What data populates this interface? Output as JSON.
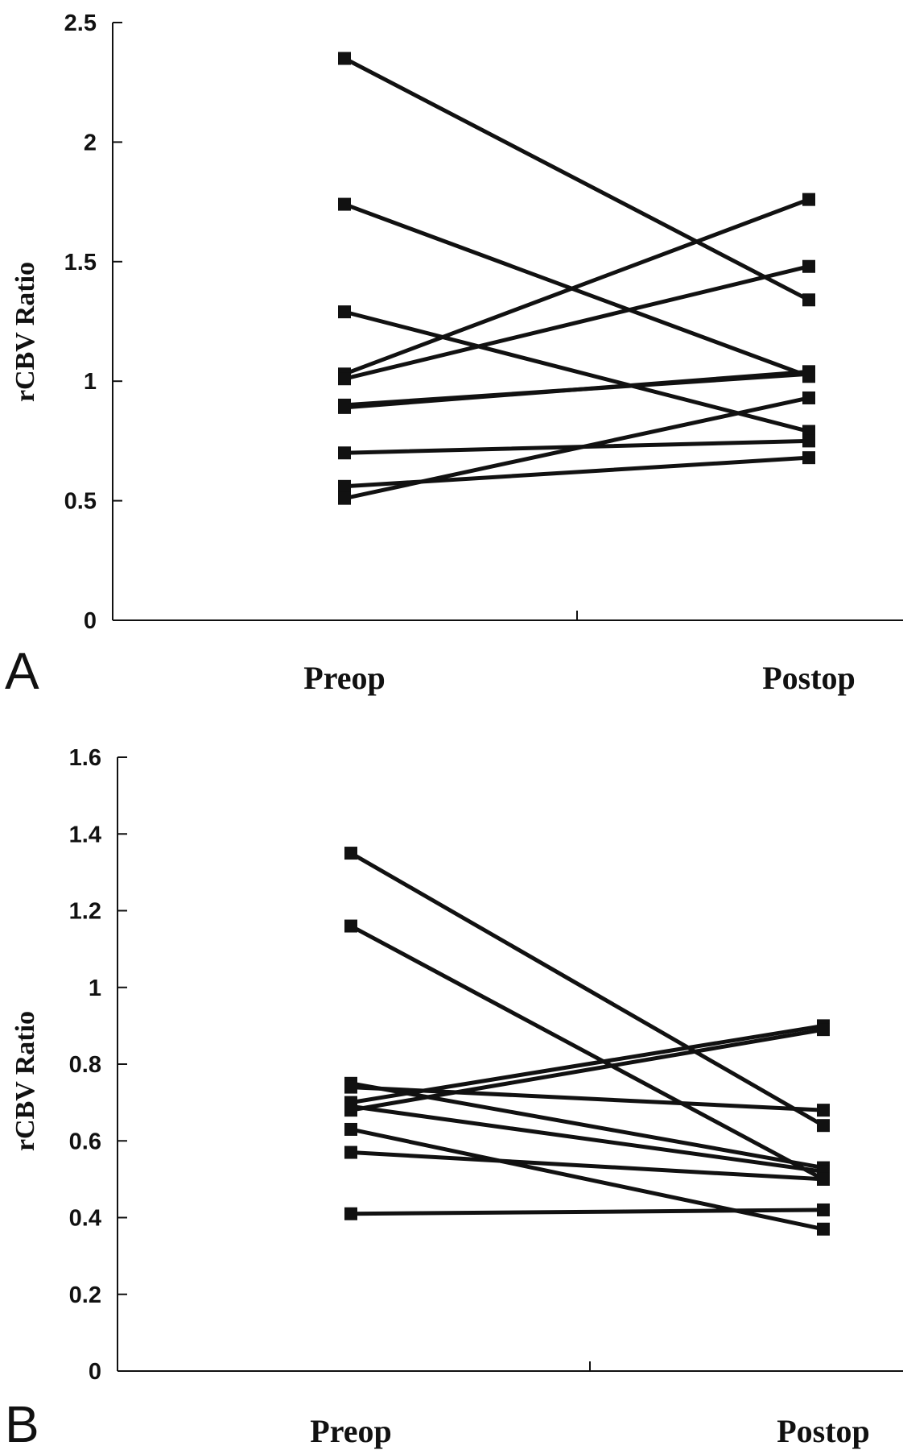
{
  "chart_data": [
    {
      "panel_label": "A",
      "type": "line",
      "categories": [
        "Preop",
        "Postop"
      ],
      "ylabel": "rCBV Ratio",
      "ylim": [
        0,
        2.5
      ],
      "yticks": [
        "0",
        "0.5",
        "1",
        "1.5",
        "2",
        "2.5"
      ],
      "marker": "square",
      "line_color": "#111111",
      "series": [
        {
          "values": [
            2.35,
            1.34
          ]
        },
        {
          "values": [
            1.74,
            1.02
          ]
        },
        {
          "values": [
            1.29,
            0.79
          ]
        },
        {
          "values": [
            1.03,
            1.76
          ]
        },
        {
          "values": [
            1.01,
            1.48
          ]
        },
        {
          "values": [
            0.89,
            1.04
          ]
        },
        {
          "values": [
            0.9,
            1.03
          ]
        },
        {
          "values": [
            0.7,
            0.75
          ]
        },
        {
          "values": [
            0.56,
            0.68
          ]
        },
        {
          "values": [
            0.51,
            0.93
          ]
        }
      ]
    },
    {
      "panel_label": "B",
      "type": "line",
      "categories": [
        "Preop",
        "Postop"
      ],
      "ylabel": "rCBV Ratio",
      "ylim": [
        0,
        1.6
      ],
      "yticks": [
        "0",
        "0.2",
        "0.4",
        "0.6",
        "0.8",
        "1",
        "1.2",
        "1.4",
        "1.6"
      ],
      "marker": "square",
      "line_color": "#111111",
      "series": [
        {
          "values": [
            1.35,
            0.64
          ]
        },
        {
          "values": [
            1.16,
            0.5
          ]
        },
        {
          "values": [
            0.75,
            0.53
          ]
        },
        {
          "values": [
            0.74,
            0.68
          ]
        },
        {
          "values": [
            0.7,
            0.9
          ]
        },
        {
          "values": [
            0.68,
            0.89
          ]
        },
        {
          "values": [
            0.69,
            0.52
          ]
        },
        {
          "values": [
            0.63,
            0.37
          ]
        },
        {
          "values": [
            0.57,
            0.5
          ]
        },
        {
          "values": [
            0.41,
            0.42
          ]
        }
      ]
    }
  ]
}
